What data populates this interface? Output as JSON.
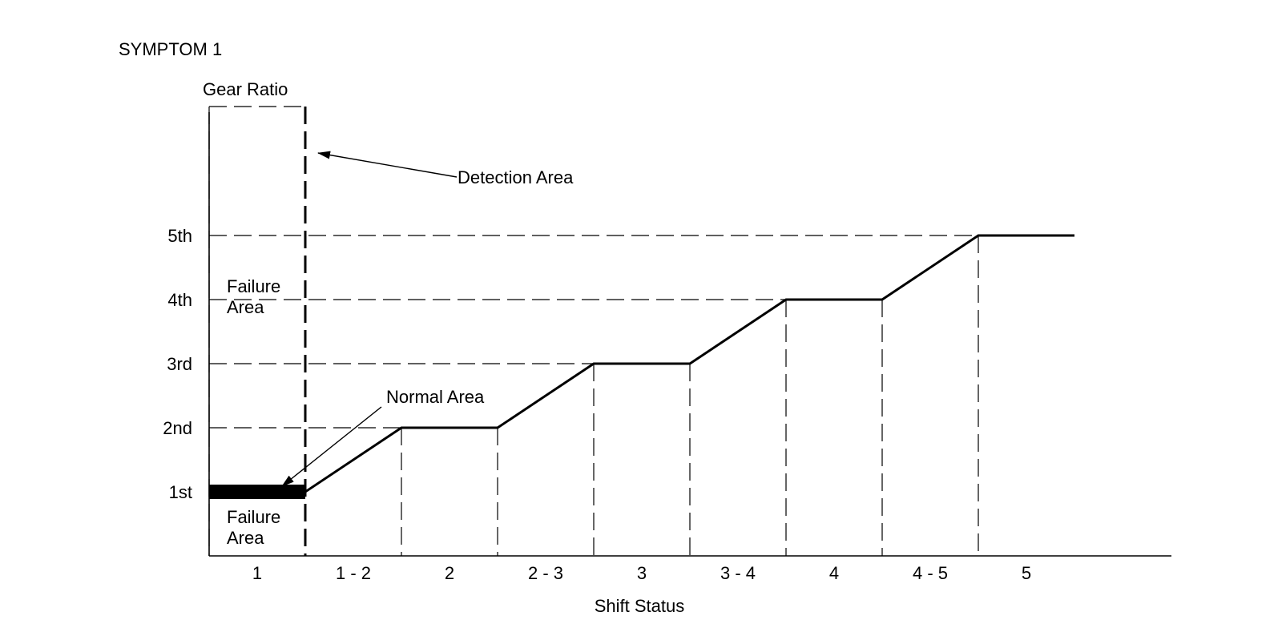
{
  "title": "SYMPTOM 1",
  "y_axis_label": "Gear Ratio",
  "x_axis_label": "Shift Status",
  "gear_levels": [
    "1st",
    "2nd",
    "3rd",
    "4th",
    "5th"
  ],
  "shift_stages": [
    "1",
    "1 - 2",
    "2",
    "2 - 3",
    "3",
    "3 - 4",
    "4",
    "4 - 5",
    "5"
  ],
  "annotations": {
    "detection_area": "Detection Area",
    "normal_area": "Normal Area",
    "failure_area_upper_line1": "Failure",
    "failure_area_upper_line2": "Area",
    "failure_area_lower_line1": "Failure",
    "failure_area_lower_line2": "Area"
  },
  "chart_data": {
    "type": "line",
    "title": "SYMPTOM 1",
    "xlabel": "Shift Status",
    "ylabel": "Gear Ratio",
    "categories": [
      "1",
      "1 - 2",
      "2",
      "2 - 3",
      "3",
      "3 - 4",
      "4",
      "4 - 5",
      "5"
    ],
    "y_categories": [
      "1st",
      "2nd",
      "3rd",
      "4th",
      "5th"
    ],
    "trace": [
      {
        "stage": "1",
        "gear": "1st"
      },
      {
        "stage": "1 - 2",
        "gear": "1st -> 2nd"
      },
      {
        "stage": "2",
        "gear": "2nd"
      },
      {
        "stage": "2 - 3",
        "gear": "2nd -> 3rd"
      },
      {
        "stage": "3",
        "gear": "3rd"
      },
      {
        "stage": "3 - 4",
        "gear": "3rd -> 4th"
      },
      {
        "stage": "4",
        "gear": "4th"
      },
      {
        "stage": "4 - 5",
        "gear": "4th -> 5th"
      },
      {
        "stage": "5",
        "gear": "5th"
      }
    ],
    "grid": true,
    "legend": "none"
  }
}
